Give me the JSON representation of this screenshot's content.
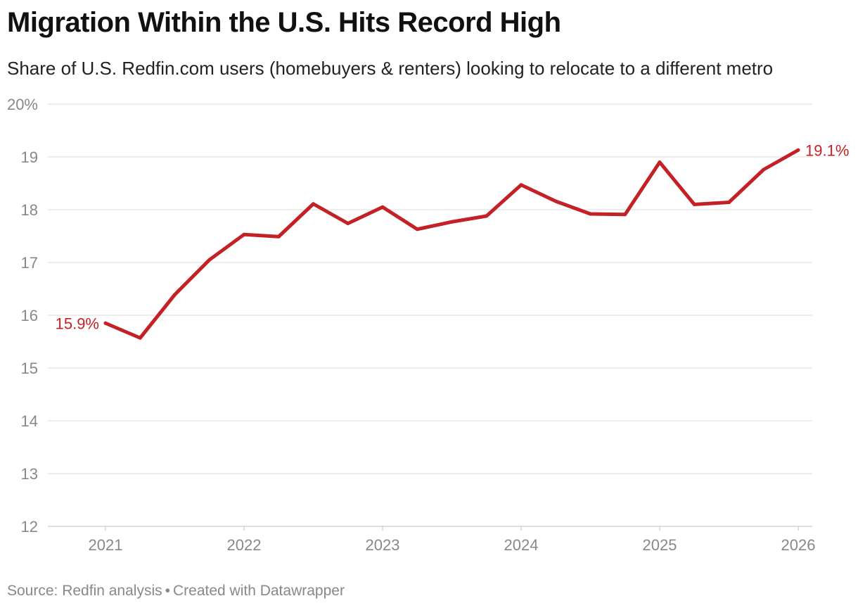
{
  "header": {
    "title": "Migration Within the U.S. Hits Record High",
    "subtitle": "Share of U.S. Redfin.com users (homebuyers & renters) looking to relocate to a different metro"
  },
  "footer": {
    "source": "Source: Redfin analysis",
    "separator": "•",
    "credit": "Created with Datawrapper"
  },
  "colors": {
    "line": "#c42127",
    "label": "#c42127",
    "grid": "#e2e2e2",
    "axis_text": "#888888",
    "baseline": "#cccccc"
  },
  "chart_data": {
    "type": "line",
    "title": "Migration Within the U.S. Hits Record High",
    "subtitle": "Share of U.S. Redfin.com users (homebuyers & renters) looking to relocate to a different metro",
    "xlabel": "",
    "ylabel": "",
    "x_ticks": [
      "2021",
      "2022",
      "2023",
      "2024",
      "2025",
      "2026"
    ],
    "y_ticks": [
      {
        "value": 12,
        "label": "12"
      },
      {
        "value": 13,
        "label": "13"
      },
      {
        "value": 14,
        "label": "14"
      },
      {
        "value": 15,
        "label": "15"
      },
      {
        "value": 16,
        "label": "16"
      },
      {
        "value": 17,
        "label": "17"
      },
      {
        "value": 18,
        "label": "18"
      },
      {
        "value": 19,
        "label": "19"
      },
      {
        "value": 20,
        "label": "20%"
      }
    ],
    "ylim": [
      12,
      20
    ],
    "xlim": [
      2021,
      2026
    ],
    "grid": true,
    "series": [
      {
        "x": [
          "2021-Q1",
          "2021-Q2",
          "2021-Q3",
          "2021-Q4",
          "2022-Q1",
          "2022-Q2",
          "2022-Q3",
          "2022-Q4",
          "2023-Q1",
          "2023-Q2",
          "2023-Q3",
          "2023-Q4",
          "2024-Q1",
          "2024-Q2",
          "2024-Q3",
          "2024-Q4",
          "2025-Q1",
          "2025-Q2",
          "2025-Q3",
          "2025-Q4",
          "2026-Q1"
        ],
        "values": [
          15.85,
          15.57,
          16.39,
          17.05,
          17.53,
          17.49,
          18.11,
          17.74,
          18.05,
          17.63,
          17.77,
          17.88,
          18.47,
          18.16,
          17.92,
          17.91,
          18.9,
          18.1,
          18.14,
          18.76,
          19.13
        ]
      }
    ],
    "annotations": [
      {
        "point": 0,
        "text": "15.9%",
        "side": "left"
      },
      {
        "point": 20,
        "text": "19.1%",
        "side": "right"
      }
    ]
  }
}
